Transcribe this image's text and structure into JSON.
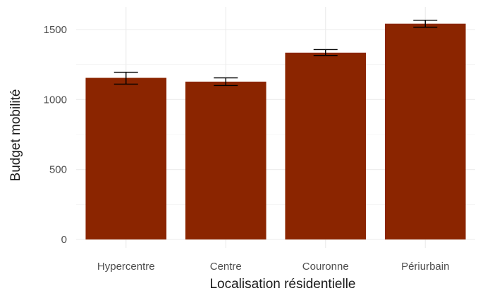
{
  "chart_data": {
    "type": "bar",
    "categories": [
      "Hypercentre",
      "Centre",
      "Couronne",
      "Périurbain"
    ],
    "values": [
      1155,
      1128,
      1335,
      1542
    ],
    "error_bars": [
      {
        "low": 1110,
        "high": 1195
      },
      {
        "low": 1100,
        "high": 1155
      },
      {
        "low": 1315,
        "high": 1357
      },
      {
        "low": 1517,
        "high": 1567
      }
    ],
    "xlabel": "Localisation résidentielle",
    "ylabel": "Budget mobilité",
    "ylim": [
      0,
      1650
    ],
    "yticks": [
      0,
      500,
      1000,
      1500
    ],
    "grid": true,
    "bar_color": "#8b2500",
    "error_color": "#000000"
  }
}
